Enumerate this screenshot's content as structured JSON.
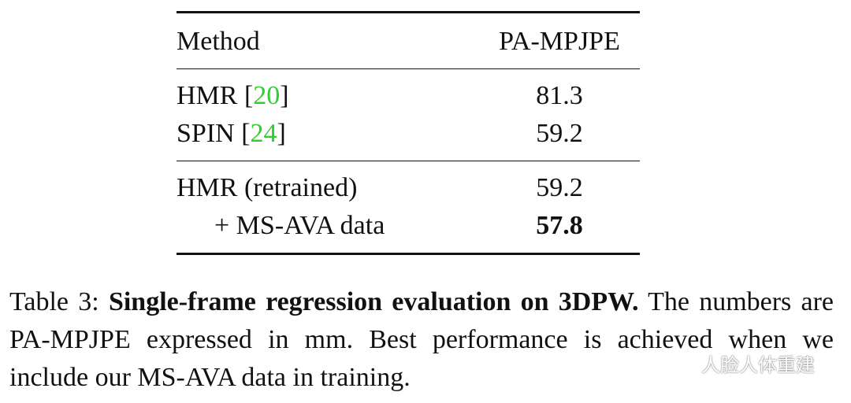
{
  "table": {
    "headers": {
      "method": "Method",
      "metric": "PA-MPJPE"
    },
    "group1": [
      {
        "name": "HMR [",
        "ref": "20",
        "close": "]",
        "value": "81.3"
      },
      {
        "name": "SPIN [",
        "ref": "24",
        "close": "]",
        "value": "59.2"
      }
    ],
    "group2": [
      {
        "name": "HMR (retrained)",
        "value": "59.2"
      },
      {
        "name": "+ MS-AVA data",
        "value": "57.8"
      }
    ]
  },
  "caption": {
    "label": "Table 3:",
    "bold_title": "Single-frame regression evaluation on 3DPW.",
    "body": "The numbers are PA-MPJPE expressed in mm.  Best performance is achieved when we include our MS-AVA data in training."
  },
  "watermark": {
    "icon": "wechat-icon",
    "text": "人脸人体重建"
  }
}
